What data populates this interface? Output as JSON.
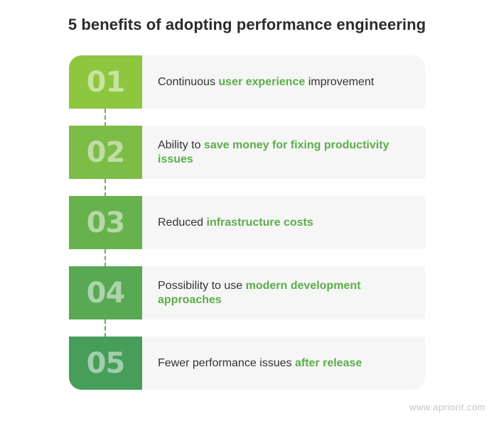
{
  "title": "5 benefits of adopting performance engineering",
  "items": [
    {
      "number": "01",
      "color": "#8dc63f",
      "text_before": "Continuous ",
      "highlight": "user experience",
      "text_after": " improvement"
    },
    {
      "number": "02",
      "color": "#7cbc47",
      "text_before": "Ability to ",
      "highlight": "save money for fixing productivity issues",
      "text_after": ""
    },
    {
      "number": "03",
      "color": "#68b24d",
      "text_before": "Reduced ",
      "highlight": "infrastructure costs",
      "text_after": ""
    },
    {
      "number": "04",
      "color": "#58a854",
      "text_before": "Possibility to use ",
      "highlight": "modern development approaches",
      "text_after": ""
    },
    {
      "number": "05",
      "color": "#479d5a",
      "text_before": "Fewer performance issues ",
      "highlight": "after release",
      "text_after": ""
    }
  ],
  "highlight_color": "#5cad4b",
  "watermark": "www.apriorit.com"
}
